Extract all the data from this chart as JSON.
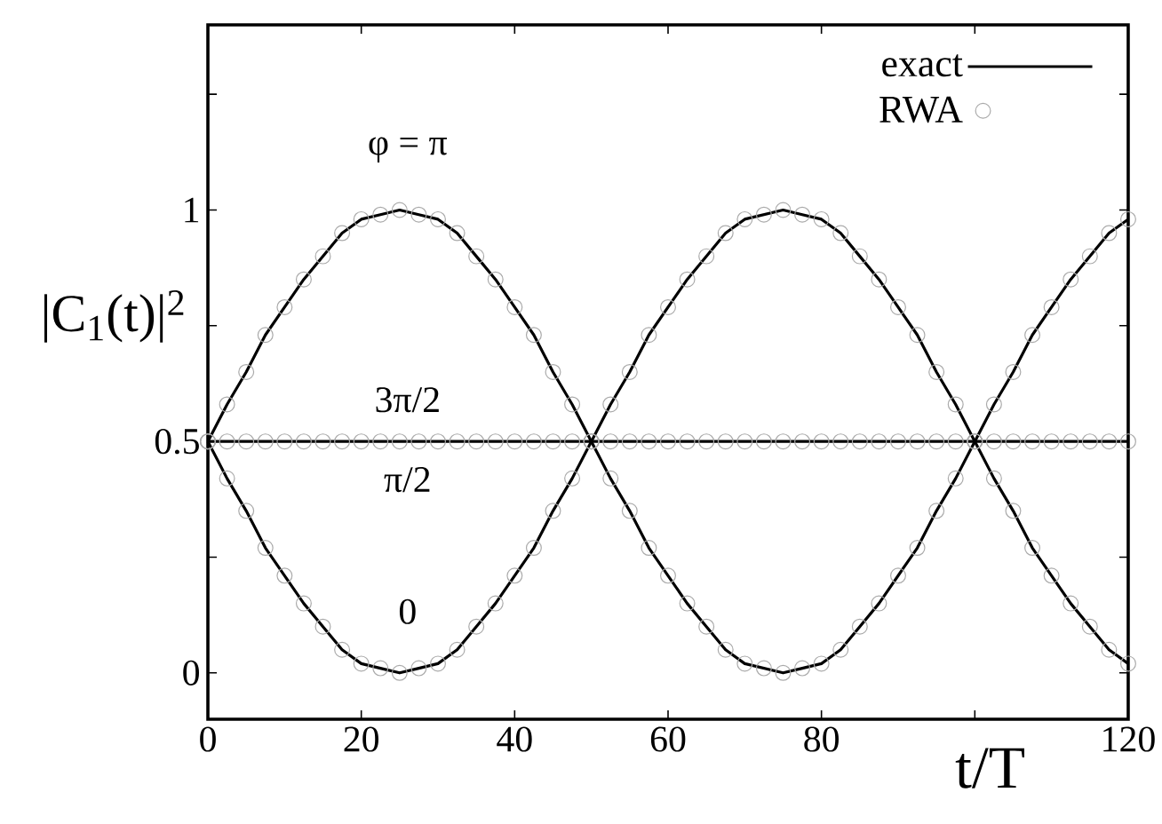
{
  "chart_data": {
    "type": "line",
    "xlabel": "t/T",
    "ylabel": "|C$_{1}$(t)|$^{2}$",
    "x": [
      0,
      2.5,
      5,
      7.5,
      10,
      12.5,
      15,
      17.5,
      20,
      22.5,
      25,
      27.5,
      30,
      32.5,
      35,
      37.5,
      40,
      42.5,
      45,
      47.5,
      50,
      52.5,
      55,
      57.5,
      60,
      62.5,
      65,
      67.5,
      70,
      72.5,
      75,
      77.5,
      80,
      82.5,
      85,
      87.5,
      90,
      92.5,
      95,
      97.5,
      100,
      102.5,
      105,
      107.5,
      110,
      112.5,
      115,
      117.5,
      120
    ],
    "series": [
      {
        "name": "exact",
        "color": "#000000",
        "line_style": "solid",
        "marker": "none",
        "values": [
          0.5,
          0.58,
          0.65,
          0.73,
          0.79,
          0.85,
          0.9,
          0.95,
          0.98,
          0.99,
          1,
          0.99,
          0.98,
          0.95,
          0.9,
          0.85,
          0.79,
          0.73,
          0.65,
          0.58,
          0.5,
          0.42,
          0.35,
          0.27,
          0.21,
          0.15,
          0.1,
          0.05,
          0.02,
          0.01,
          0,
          0.01,
          0.02,
          0.05,
          0.1,
          0.15,
          0.21,
          0.27,
          0.35,
          0.42,
          0.5,
          0.58,
          0.65,
          0.73,
          0.79,
          0.85,
          0.9,
          0.95,
          0.98
        ]
      },
      {
        "color": "#000000",
        "line_style": "solid",
        "marker": "none",
        "values": [
          0.5,
          0.42,
          0.35,
          0.27,
          0.21,
          0.15,
          0.1,
          0.05,
          0.02,
          0.01,
          0,
          0.01,
          0.02,
          0.05,
          0.1,
          0.15,
          0.21,
          0.27,
          0.35,
          0.42,
          0.5,
          0.58,
          0.65,
          0.73,
          0.79,
          0.85,
          0.9,
          0.95,
          0.98,
          0.99,
          1,
          0.99,
          0.98,
          0.95,
          0.9,
          0.85,
          0.79,
          0.73,
          0.65,
          0.58,
          0.5,
          0.42,
          0.35,
          0.27,
          0.21,
          0.15,
          0.1,
          0.05,
          0.02
        ]
      },
      {
        "color": "#000000",
        "line_style": "solid",
        "marker": "none",
        "values": [
          0.5,
          0.5,
          0.5,
          0.5,
          0.5,
          0.5,
          0.5,
          0.5,
          0.5,
          0.5,
          0.5,
          0.5,
          0.5,
          0.5,
          0.5,
          0.5,
          0.5,
          0.5,
          0.5,
          0.5,
          0.5,
          0.5,
          0.5,
          0.5,
          0.5,
          0.5,
          0.5,
          0.5,
          0.5,
          0.5,
          0.5,
          0.5,
          0.5,
          0.5,
          0.5,
          0.5,
          0.5,
          0.5,
          0.5,
          0.5,
          0.5,
          0.5,
          0.5,
          0.5,
          0.5,
          0.5,
          0.5,
          0.5,
          0.5
        ]
      },
      {
        "name": "RWA",
        "type": "scatter",
        "color": "#aaaaaa",
        "marker": "circle",
        "values": [
          0.5,
          0.58,
          0.65,
          0.73,
          0.79,
          0.85,
          0.9,
          0.95,
          0.98,
          0.99,
          1,
          0.99,
          0.98,
          0.95,
          0.9,
          0.85,
          0.79,
          0.73,
          0.65,
          0.58,
          0.5,
          0.42,
          0.35,
          0.27,
          0.21,
          0.15,
          0.1,
          0.05,
          0.02,
          0.01,
          0,
          0.01,
          0.02,
          0.05,
          0.1,
          0.15,
          0.21,
          0.27,
          0.35,
          0.42,
          0.5,
          0.58,
          0.65,
          0.73,
          0.79,
          0.85,
          0.9,
          0.95,
          0.98
        ]
      },
      {
        "type": "scatter",
        "color": "#aaaaaa",
        "marker": "circle",
        "values": [
          0.5,
          0.42,
          0.35,
          0.27,
          0.21,
          0.15,
          0.1,
          0.05,
          0.02,
          0.01,
          0,
          0.01,
          0.02,
          0.05,
          0.1,
          0.15,
          0.21,
          0.27,
          0.35,
          0.42,
          0.5,
          0.58,
          0.65,
          0.73,
          0.79,
          0.85,
          0.9,
          0.95,
          0.98,
          0.99,
          1,
          0.99,
          0.98,
          0.95,
          0.9,
          0.85,
          0.79,
          0.73,
          0.65,
          0.58,
          0.5,
          0.42,
          0.35,
          0.27,
          0.21,
          0.15,
          0.1,
          0.05,
          0.02
        ]
      },
      {
        "type": "scatter",
        "color": "#aaaaaa",
        "marker": "circle",
        "values": [
          0.5,
          0.5,
          0.5,
          0.5,
          0.5,
          0.5,
          0.5,
          0.5,
          0.5,
          0.5,
          0.5,
          0.5,
          0.5,
          0.5,
          0.5,
          0.5,
          0.5,
          0.5,
          0.5,
          0.5,
          0.5,
          0.5,
          0.5,
          0.5,
          0.5,
          0.5,
          0.5,
          0.5,
          0.5,
          0.5,
          0.5,
          0.5,
          0.5,
          0.5,
          0.5,
          0.5,
          0.5,
          0.5,
          0.5,
          0.5,
          0.5,
          0.5,
          0.5,
          0.5,
          0.5,
          0.5,
          0.5,
          0.5,
          0.5
        ]
      }
    ],
    "annotations": [
      "φ = π",
      "3π/2",
      "π/2",
      "0"
    ],
    "xlim": [
      0,
      120
    ],
    "ylim": [
      -0.1,
      1.4
    ],
    "xticks": [
      0,
      20,
      40,
      60,
      80,
      {
        "value": 100,
        "label": null
      },
      120
    ],
    "yticks": [
      0,
      {
        "value": 0.25,
        "label": null
      },
      0.5,
      {
        "value": 0.75,
        "label": null
      },
      1,
      {
        "value": 1.25,
        "label": null
      }
    ],
    "grid": false,
    "legend": "top right"
  }
}
